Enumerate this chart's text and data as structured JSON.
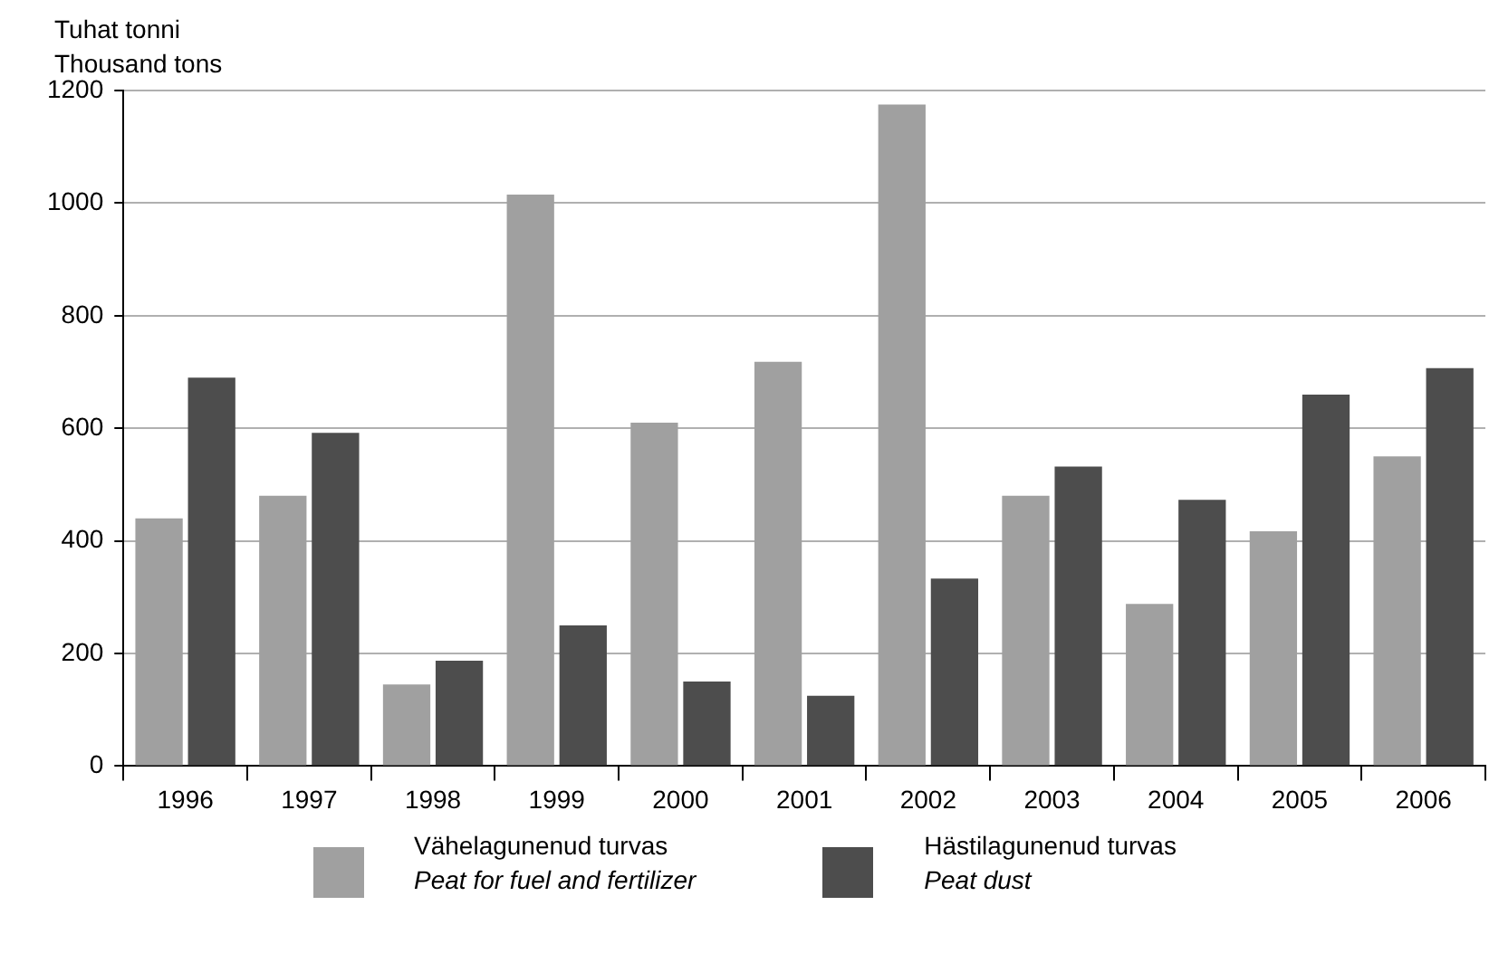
{
  "chart_data": {
    "type": "bar",
    "ylabel": "Tuhat tonni\nThousand tons",
    "categories": [
      "1996",
      "1997",
      "1998",
      "1999",
      "2000",
      "2001",
      "2002",
      "2003",
      "2004",
      "2005",
      "2006"
    ],
    "series": [
      {
        "name": "Vähelagunenud turvas\nPeat for fuel and fertilizer",
        "color": "#a0a0a0",
        "values": [
          440,
          480,
          145,
          1015,
          610,
          718,
          1175,
          480,
          288,
          417,
          550
        ]
      },
      {
        "name": "Hästilagunenud turvas\nPeat dust",
        "color": "#4d4d4d",
        "values": [
          690,
          592,
          187,
          250,
          150,
          125,
          333,
          532,
          473,
          660,
          707
        ]
      }
    ],
    "ylim": [
      0,
      1200
    ],
    "yticks": [
      0,
      200,
      400,
      600,
      800,
      1000,
      1200
    ],
    "grid": "y",
    "legend": "bottom"
  }
}
